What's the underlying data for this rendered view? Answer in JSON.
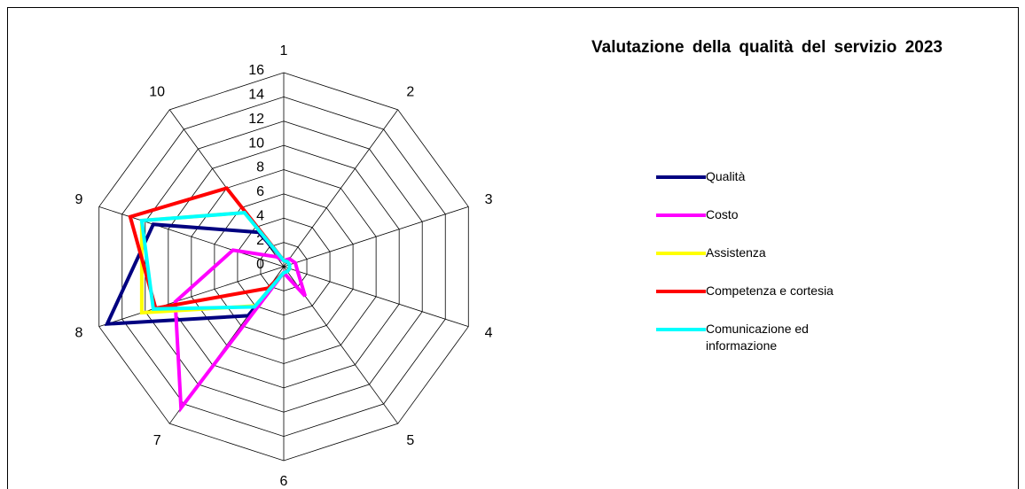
{
  "chart_data": {
    "type": "radar",
    "title": "Valutazione della qualità del servizio 2023",
    "categories": [
      "1",
      "2",
      "3",
      "4",
      "5",
      "6",
      "7",
      "8",
      "9",
      "10"
    ],
    "ylim": [
      0,
      16
    ],
    "yticks": [
      0,
      2,
      4,
      6,
      8,
      10,
      12,
      14,
      16
    ],
    "grid": true,
    "legend": "right",
    "series": [
      {
        "name": "Qualità",
        "color": "#000080",
        "values": [
          0.5,
          0.5,
          0.5,
          0.5,
          0.5,
          0.5,
          5,
          15.3,
          11.3,
          3.5
        ]
      },
      {
        "name": "Costo",
        "color": "#ff00ff",
        "values": [
          0.5,
          0.8,
          1,
          1.2,
          3,
          0.5,
          14.4,
          9.4,
          4.4,
          1
        ]
      },
      {
        "name": "Assistenza",
        "color": "#ffff00",
        "values": [
          0.5,
          0.5,
          0.5,
          0.5,
          0.5,
          0.5,
          4,
          12.3,
          12.3,
          5.5
        ]
      },
      {
        "name": "Competenza e cortesia",
        "color": "#ff0000",
        "values": [
          0.5,
          0.5,
          0.5,
          0.5,
          0.5,
          0.5,
          2.2,
          11.1,
          13.3,
          8
        ]
      },
      {
        "name": "Comunicazione ed informazione",
        "color": "#00ffff",
        "values": [
          0.5,
          0.5,
          0.5,
          0.5,
          0.5,
          0.5,
          4.1,
          11.3,
          12.3,
          5.5
        ]
      }
    ]
  }
}
